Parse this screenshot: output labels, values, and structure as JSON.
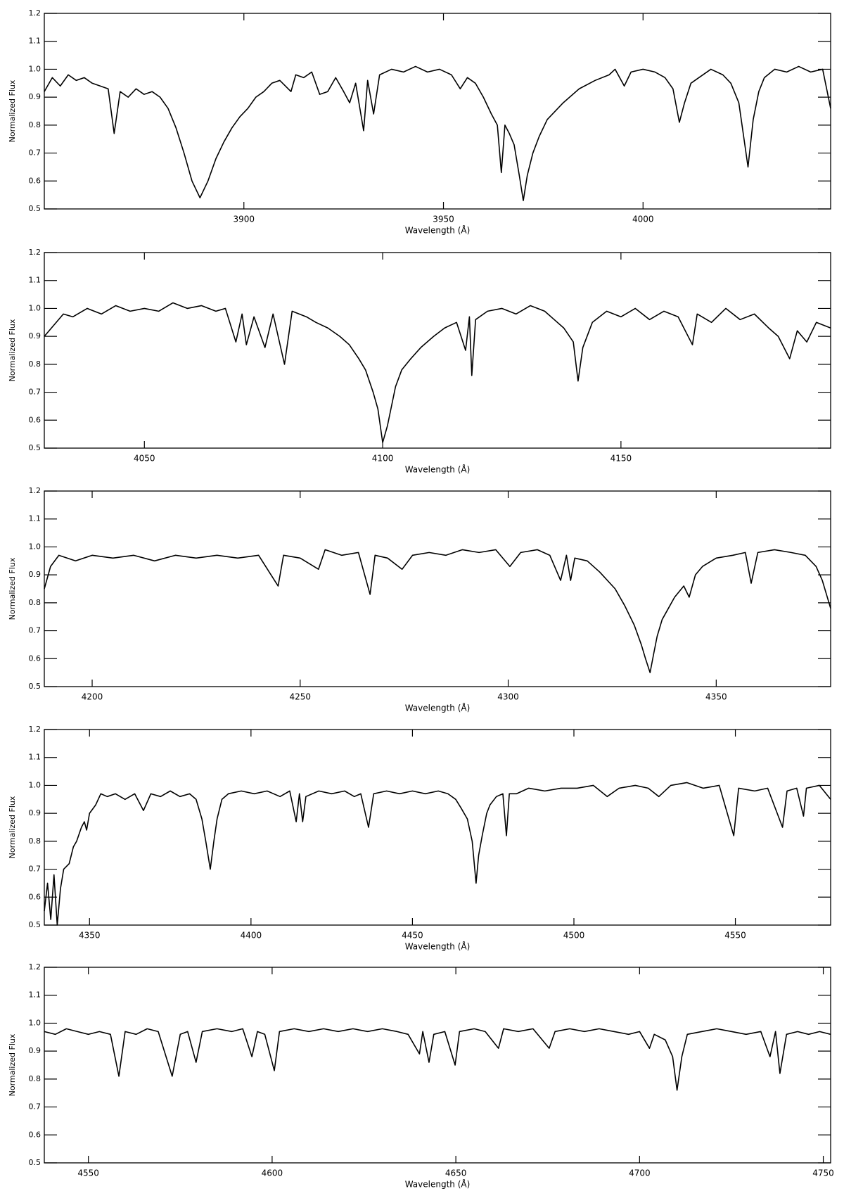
{
  "chart_data": [
    {
      "type": "line",
      "xlabel": "Wavelength (Å)",
      "ylabel": "Normalized Flux",
      "color": "#000000",
      "xlim": [
        3850,
        4047
      ],
      "ylim": [
        0.5,
        1.2
      ],
      "xticks": [
        3900,
        3950,
        4000
      ],
      "yticks": [
        0.5,
        0.6,
        0.7,
        0.8,
        0.9,
        {
          "value": 1,
          "label": "1.0"
        },
        1.1,
        1.2
      ],
      "x": [
        3850,
        3852,
        3854,
        3856,
        3858,
        3860,
        3862,
        3864,
        3866,
        3867.5,
        3869,
        3871,
        3873,
        3875,
        3877,
        3879,
        3881,
        3883,
        3885,
        3887,
        3889,
        3891,
        3893,
        3895,
        3897,
        3899,
        3901,
        3903,
        3905,
        3907,
        3909,
        3911.8,
        3913,
        3915,
        3917,
        3919,
        3921,
        3923,
        3925,
        3926.5,
        3928,
        3930,
        3931,
        3932.5,
        3934,
        3937,
        3940,
        3943,
        3946,
        3949,
        3952,
        3954.2,
        3956,
        3958,
        3960,
        3962,
        3963.5,
        3964.5,
        3965.4,
        3966.5,
        3967.7,
        3969,
        3970,
        3971,
        3972.4,
        3974,
        3976,
        3980,
        3984,
        3988,
        3991.5,
        3993,
        3995.3,
        3997,
        4000,
        4003,
        4005.5,
        4007.5,
        4009.1,
        4010.4,
        4012,
        4014,
        4017,
        4020,
        4022,
        4024,
        4025,
        4026.3,
        4027.6,
        4029,
        4030.4,
        4033,
        4036,
        4039,
        4042,
        4045,
        4047
      ],
      "values": [
        0.92,
        0.97,
        0.94,
        0.98,
        0.96,
        0.97,
        0.95,
        0.94,
        0.93,
        0.77,
        0.92,
        0.9,
        0.93,
        0.91,
        0.92,
        0.9,
        0.86,
        0.79,
        0.7,
        0.6,
        0.54,
        0.6,
        0.68,
        0.74,
        0.79,
        0.83,
        0.86,
        0.9,
        0.92,
        0.95,
        0.96,
        0.92,
        0.98,
        0.97,
        0.99,
        0.91,
        0.92,
        0.97,
        0.92,
        0.88,
        0.95,
        0.78,
        0.96,
        0.84,
        0.98,
        1.0,
        0.99,
        1.01,
        0.99,
        1.0,
        0.98,
        0.93,
        0.97,
        0.95,
        0.9,
        0.84,
        0.8,
        0.63,
        0.8,
        0.77,
        0.73,
        0.62,
        0.53,
        0.62,
        0.7,
        0.76,
        0.82,
        0.88,
        0.93,
        0.96,
        0.98,
        1.0,
        0.94,
        0.99,
        1.0,
        0.99,
        0.97,
        0.93,
        0.81,
        0.88,
        0.95,
        0.97,
        1.0,
        0.98,
        0.95,
        0.88,
        0.78,
        0.65,
        0.82,
        0.92,
        0.97,
        1.0,
        0.99,
        1.01,
        0.99,
        1.0,
        0.86
      ]
    },
    {
      "type": "line",
      "xlabel": "Wavelength (Å)",
      "ylabel": "Normalized Flux",
      "color": "#000000",
      "xlim": [
        4029,
        4194
      ],
      "ylim": [
        0.5,
        1.2
      ],
      "xticks": [
        4050,
        4100,
        4150
      ],
      "yticks": [
        0.5,
        0.6,
        0.7,
        0.8,
        0.9,
        {
          "value": 1,
          "label": "1.0"
        },
        1.1,
        1.2
      ],
      "x": [
        4029,
        4031,
        4033,
        4035,
        4038,
        4041,
        4044,
        4047,
        4050,
        4053,
        4056,
        4059,
        4062,
        4065,
        4067,
        4069.2,
        4070.5,
        4071.4,
        4073,
        4075.3,
        4077,
        4079.4,
        4081,
        4084,
        4086,
        4088.5,
        4091,
        4093,
        4095,
        4096.4,
        4098,
        4099,
        4100,
        4101,
        4102.7,
        4104,
        4105.9,
        4108,
        4110.7,
        4113,
        4115.5,
        4117.4,
        4118.2,
        4118.7,
        4119.5,
        4122,
        4125,
        4128,
        4131,
        4134,
        4136,
        4138,
        4140,
        4141,
        4142,
        4144,
        4147,
        4150,
        4153,
        4156,
        4159,
        4162,
        4165,
        4166,
        4169,
        4172,
        4175,
        4178,
        4181,
        4183,
        4185.4,
        4187,
        4189,
        4191,
        4194
      ],
      "values": [
        0.9,
        0.94,
        0.98,
        0.97,
        1.0,
        0.98,
        1.01,
        0.99,
        1.0,
        0.99,
        1.02,
        1.0,
        1.01,
        0.99,
        1.0,
        0.88,
        0.98,
        0.87,
        0.97,
        0.86,
        0.98,
        0.8,
        0.99,
        0.97,
        0.95,
        0.93,
        0.9,
        0.87,
        0.82,
        0.78,
        0.7,
        0.64,
        0.52,
        0.58,
        0.72,
        0.78,
        0.82,
        0.86,
        0.9,
        0.93,
        0.95,
        0.85,
        0.97,
        0.76,
        0.96,
        0.99,
        1.0,
        0.98,
        1.01,
        0.99,
        0.96,
        0.93,
        0.88,
        0.74,
        0.86,
        0.95,
        0.99,
        0.97,
        1.0,
        0.96,
        0.99,
        0.97,
        0.87,
        0.98,
        0.95,
        1.0,
        0.96,
        0.98,
        0.93,
        0.9,
        0.82,
        0.92,
        0.88,
        0.95,
        0.93
      ]
    },
    {
      "type": "line",
      "xlabel": "Wavelength (Å)",
      "ylabel": "Normalized Flux",
      "color": "#000000",
      "xlim": [
        4188.5,
        4377.5
      ],
      "ylim": [
        0.5,
        1.2
      ],
      "xticks": [
        4200,
        4250,
        4300,
        4350
      ],
      "yticks": [
        0.5,
        0.6,
        0.7,
        0.8,
        0.9,
        {
          "value": 1,
          "label": "1.0"
        },
        1.1,
        1.2
      ],
      "x": [
        4188.5,
        4190,
        4192,
        4196,
        4200,
        4205,
        4210,
        4215,
        4220,
        4225,
        4230,
        4235,
        4240,
        4244.7,
        4246,
        4250,
        4254.4,
        4256,
        4260,
        4264,
        4266.8,
        4268,
        4271,
        4274.5,
        4277,
        4281,
        4285,
        4289,
        4293,
        4297,
        4300.4,
        4303,
        4307,
        4310,
        4312.6,
        4314,
        4315,
        4316,
        4319,
        4322,
        4325.7,
        4328,
        4330.3,
        4332,
        4333,
        4334.1,
        4335,
        4335.8,
        4337,
        4338.5,
        4340,
        4342.2,
        4343.5,
        4345,
        4346.7,
        4350,
        4354,
        4357,
        4358.4,
        4360,
        4364,
        4368,
        4371.4,
        4374,
        4375.5,
        4377.5
      ],
      "values": [
        0.85,
        0.93,
        0.97,
        0.95,
        0.97,
        0.96,
        0.97,
        0.95,
        0.97,
        0.96,
        0.97,
        0.96,
        0.97,
        0.86,
        0.97,
        0.96,
        0.92,
        0.99,
        0.97,
        0.98,
        0.83,
        0.97,
        0.96,
        0.92,
        0.97,
        0.98,
        0.97,
        0.99,
        0.98,
        0.99,
        0.93,
        0.98,
        0.99,
        0.97,
        0.88,
        0.97,
        0.88,
        0.96,
        0.95,
        0.91,
        0.85,
        0.79,
        0.72,
        0.65,
        0.6,
        0.55,
        0.62,
        0.68,
        0.74,
        0.78,
        0.82,
        0.86,
        0.82,
        0.9,
        0.93,
        0.96,
        0.97,
        0.98,
        0.87,
        0.98,
        0.99,
        0.98,
        0.97,
        0.93,
        0.88,
        0.78
      ]
    },
    {
      "type": "line",
      "xlabel": "Wavelength (Å)",
      "ylabel": "Normalized Flux",
      "color": "#000000",
      "xlim": [
        4336,
        4579.5
      ],
      "ylim": [
        0.5,
        1.2
      ],
      "xticks": [
        4350,
        4400,
        4450,
        4500,
        4550
      ],
      "yticks": [
        0.5,
        0.6,
        0.7,
        0.8,
        0.9,
        {
          "value": 1,
          "label": "1.0"
        },
        1.1,
        1.2
      ],
      "x": [
        4336,
        4337,
        4338,
        4339,
        4340,
        4341,
        4342,
        4343.7,
        4345,
        4346,
        4347.5,
        4348.4,
        4349.1,
        4350,
        4351.9,
        4353.5,
        4355.5,
        4358,
        4361,
        4364,
        4366.7,
        4369,
        4372,
        4375,
        4378,
        4381,
        4383,
        4384.8,
        4386,
        4387.4,
        4388.5,
        4389.5,
        4391,
        4393,
        4397,
        4401,
        4405,
        4409,
        4412,
        4414,
        4415,
        4416,
        4417,
        4421,
        4425,
        4429,
        4432,
        4434,
        4436.4,
        4438,
        4442,
        4446,
        4450,
        4454,
        4458,
        4461,
        4463.4,
        4465,
        4467,
        4468.5,
        4469.7,
        4470.5,
        4471.6,
        4473,
        4474,
        4476,
        4478,
        4479.1,
        4480,
        4482.2,
        4486,
        4491,
        4496,
        4501,
        4506,
        4510.3,
        4514,
        4519,
        4523,
        4526.3,
        4530,
        4535,
        4540,
        4545,
        4549.5,
        4551,
        4556,
        4560,
        4564.6,
        4566,
        4569,
        4571.1,
        4572,
        4576,
        4579.5
      ],
      "values": [
        0.55,
        0.65,
        0.52,
        0.68,
        0.5,
        0.63,
        0.7,
        0.72,
        0.78,
        0.8,
        0.85,
        0.87,
        0.84,
        0.9,
        0.93,
        0.97,
        0.96,
        0.97,
        0.95,
        0.97,
        0.91,
        0.97,
        0.96,
        0.98,
        0.96,
        0.97,
        0.95,
        0.88,
        0.8,
        0.7,
        0.8,
        0.88,
        0.95,
        0.97,
        0.98,
        0.97,
        0.98,
        0.96,
        0.98,
        0.87,
        0.97,
        0.87,
        0.96,
        0.98,
        0.97,
        0.98,
        0.96,
        0.97,
        0.85,
        0.97,
        0.98,
        0.97,
        0.98,
        0.97,
        0.98,
        0.97,
        0.95,
        0.92,
        0.88,
        0.8,
        0.65,
        0.75,
        0.82,
        0.9,
        0.93,
        0.96,
        0.97,
        0.82,
        0.97,
        0.97,
        0.99,
        0.98,
        0.99,
        0.99,
        1.0,
        0.96,
        0.99,
        1.0,
        0.99,
        0.96,
        1.0,
        1.01,
        0.99,
        1.0,
        0.82,
        0.99,
        0.98,
        0.99,
        0.85,
        0.98,
        0.99,
        0.89,
        0.99,
        1.0,
        0.95
      ]
    },
    {
      "type": "line",
      "xlabel": "Wavelength (Å)",
      "ylabel": "Normalized Flux",
      "color": "#000000",
      "xlim": [
        4538,
        4752
      ],
      "ylim": [
        0.5,
        1.2
      ],
      "xticks": [
        4550,
        4600,
        4650,
        4700,
        4750
      ],
      "yticks": [
        0.5,
        0.6,
        0.7,
        0.8,
        0.9,
        {
          "value": 1,
          "label": "1.0"
        },
        1.1,
        1.2
      ],
      "x": [
        4538,
        4541,
        4544,
        4547,
        4550,
        4553,
        4556,
        4558.3,
        4560,
        4563,
        4566,
        4569,
        4572.8,
        4575,
        4577,
        4579.3,
        4581,
        4585,
        4589,
        4592,
        4594.5,
        4596,
        4598,
        4600.6,
        4602,
        4606,
        4610,
        4614,
        4618,
        4622,
        4626,
        4630,
        4634,
        4637,
        4640.1,
        4641,
        4642.7,
        4644,
        4647,
        4649.8,
        4651,
        4655,
        4658,
        4661.6,
        4663,
        4667,
        4671,
        4675.4,
        4677,
        4681,
        4685,
        4689,
        4693,
        4697,
        4700,
        4702.7,
        4704,
        4707,
        4709,
        4710.2,
        4711.5,
        4713,
        4717,
        4721,
        4725,
        4729,
        4733,
        4735.5,
        4737,
        4738.2,
        4740,
        4743,
        4746,
        4749,
        4752
      ],
      "values": [
        0.97,
        0.96,
        0.98,
        0.97,
        0.96,
        0.97,
        0.96,
        0.81,
        0.97,
        0.96,
        0.98,
        0.97,
        0.81,
        0.96,
        0.97,
        0.86,
        0.97,
        0.98,
        0.97,
        0.98,
        0.88,
        0.97,
        0.96,
        0.83,
        0.97,
        0.98,
        0.97,
        0.98,
        0.97,
        0.98,
        0.97,
        0.98,
        0.97,
        0.96,
        0.89,
        0.97,
        0.86,
        0.96,
        0.97,
        0.85,
        0.97,
        0.98,
        0.97,
        0.91,
        0.98,
        0.97,
        0.98,
        0.91,
        0.97,
        0.98,
        0.97,
        0.98,
        0.97,
        0.96,
        0.97,
        0.91,
        0.96,
        0.94,
        0.88,
        0.76,
        0.88,
        0.96,
        0.97,
        0.98,
        0.97,
        0.96,
        0.97,
        0.88,
        0.97,
        0.82,
        0.96,
        0.97,
        0.96,
        0.97,
        0.96
      ]
    }
  ]
}
